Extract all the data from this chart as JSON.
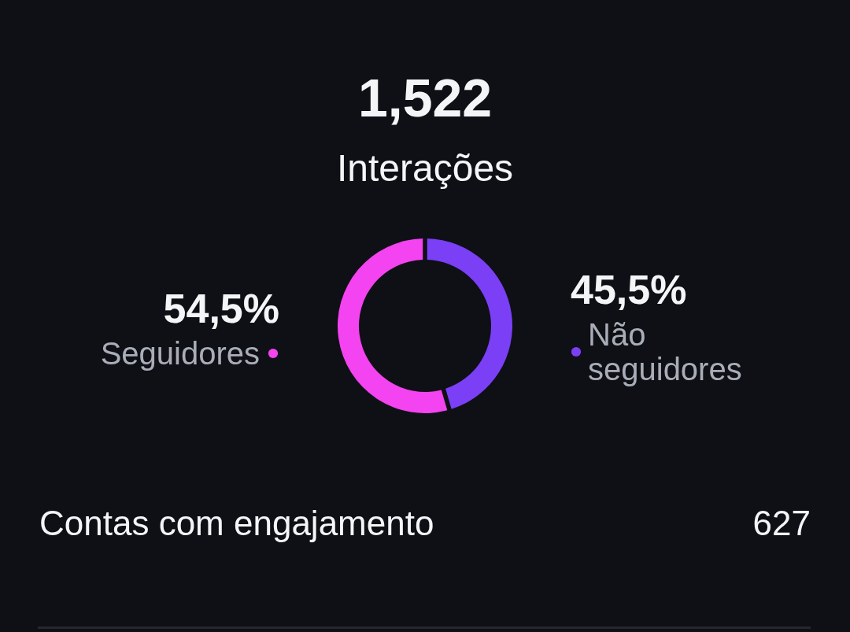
{
  "chart_data": {
    "type": "donut",
    "title": "1,522",
    "subtitle": "Interações",
    "categories": [
      "Seguidores",
      "Não seguidores"
    ],
    "values": [
      54.5,
      45.5
    ],
    "colors": [
      "#f443f0",
      "#7b3ff6"
    ],
    "value_labels": [
      "54,5%",
      "45,5%"
    ],
    "annotations": [
      "Contas com engajamento",
      "627"
    ]
  }
}
